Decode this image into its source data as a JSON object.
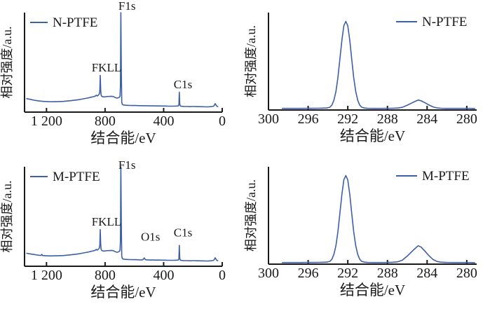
{
  "figure": {
    "description": "XPS spectra of N-PTFE and M-PTFE",
    "background": "#ffffff"
  },
  "colors": {
    "line": "#3e5fa5",
    "axis": "#1a1a1a",
    "text": "#1a1a1a"
  },
  "chart_data": [
    {
      "id": "n-ptfe-survey",
      "type": "line",
      "legend": {
        "label": "N-PTFE",
        "position": "top-left"
      },
      "xlabel": "结合能/eV",
      "ylabel": "相对强度/a.u.",
      "xlim": [
        1350,
        0
      ],
      "ylim": [
        0,
        1.0
      ],
      "x_reversed": true,
      "grid": false,
      "x_ticks": [
        {
          "value": 1200,
          "label": "1 200"
        },
        {
          "value": 800,
          "label": "800"
        },
        {
          "value": 400,
          "label": "400"
        },
        {
          "value": 0,
          "label": "0"
        }
      ],
      "annotations": [
        {
          "label": "F1s",
          "x": 650,
          "y": 1.07
        },
        {
          "label": "FKLL",
          "x": 790,
          "y": 0.45
        },
        {
          "label": "C1s",
          "x": 268,
          "y": 0.28
        }
      ],
      "points": [
        [
          1335,
          0.135
        ],
        [
          1310,
          0.128
        ],
        [
          1285,
          0.12
        ],
        [
          1260,
          0.114
        ],
        [
          1235,
          0.11
        ],
        [
          1210,
          0.107
        ],
        [
          1185,
          0.105
        ],
        [
          1160,
          0.104
        ],
        [
          1135,
          0.105
        ],
        [
          1110,
          0.106
        ],
        [
          1085,
          0.108
        ],
        [
          1060,
          0.111
        ],
        [
          1035,
          0.115
        ],
        [
          1010,
          0.119
        ],
        [
          985,
          0.124
        ],
        [
          960,
          0.13
        ],
        [
          935,
          0.137
        ],
        [
          912,
          0.144
        ],
        [
          895,
          0.15
        ],
        [
          880,
          0.155
        ],
        [
          868,
          0.16
        ],
        [
          860,
          0.17
        ],
        [
          854,
          0.162
        ],
        [
          848,
          0.168
        ],
        [
          843,
          0.176
        ],
        [
          839,
          0.183
        ],
        [
          836,
          0.215
        ],
        [
          833,
          0.37
        ],
        [
          830,
          0.23
        ],
        [
          827,
          0.172
        ],
        [
          822,
          0.158
        ],
        [
          815,
          0.154
        ],
        [
          805,
          0.153
        ],
        [
          795,
          0.155
        ],
        [
          783,
          0.157
        ],
        [
          770,
          0.158
        ],
        [
          757,
          0.159
        ],
        [
          745,
          0.157
        ],
        [
          735,
          0.15
        ],
        [
          726,
          0.144
        ],
        [
          718,
          0.141
        ],
        [
          710,
          0.144
        ],
        [
          703,
          0.149
        ],
        [
          698,
          0.16
        ],
        [
          695,
          0.26
        ],
        [
          692,
          1.0
        ],
        [
          689,
          0.4
        ],
        [
          686,
          0.1
        ],
        [
          682,
          0.078
        ],
        [
          675,
          0.072
        ],
        [
          665,
          0.07
        ],
        [
          650,
          0.068
        ],
        [
          630,
          0.067
        ],
        [
          610,
          0.066
        ],
        [
          590,
          0.066
        ],
        [
          570,
          0.065
        ],
        [
          550,
          0.065
        ],
        [
          530,
          0.064
        ],
        [
          510,
          0.064
        ],
        [
          490,
          0.063
        ],
        [
          470,
          0.063
        ],
        [
          450,
          0.062
        ],
        [
          430,
          0.062
        ],
        [
          410,
          0.061
        ],
        [
          390,
          0.061
        ],
        [
          370,
          0.06
        ],
        [
          350,
          0.06
        ],
        [
          330,
          0.06
        ],
        [
          310,
          0.061
        ],
        [
          300,
          0.063
        ],
        [
          296,
          0.075
        ],
        [
          293,
          0.2
        ],
        [
          290,
          0.085
        ],
        [
          287,
          0.063
        ],
        [
          280,
          0.059
        ],
        [
          265,
          0.057
        ],
        [
          250,
          0.056
        ],
        [
          235,
          0.056
        ],
        [
          220,
          0.055
        ],
        [
          205,
          0.056
        ],
        [
          190,
          0.056
        ],
        [
          175,
          0.055
        ],
        [
          160,
          0.055
        ],
        [
          145,
          0.054
        ],
        [
          130,
          0.054
        ],
        [
          115,
          0.053
        ],
        [
          100,
          0.053
        ],
        [
          85,
          0.054
        ],
        [
          70,
          0.056
        ],
        [
          58,
          0.06
        ],
        [
          48,
          0.085
        ],
        [
          42,
          0.07
        ],
        [
          36,
          0.058
        ],
        [
          30,
          0.056
        ]
      ]
    },
    {
      "id": "n-ptfe-c1s",
      "type": "line",
      "legend": {
        "label": "N-PTFE",
        "position": "top-right"
      },
      "xlabel": "结合能/eV",
      "ylabel": "相对强度/a.u.",
      "xlim": [
        300,
        279
      ],
      "ylim": [
        0,
        1.1
      ],
      "x_reversed": true,
      "grid": false,
      "x_ticks": [
        {
          "value": 300,
          "label": "300"
        },
        {
          "value": 296,
          "label": "296"
        },
        {
          "value": 292,
          "label": "292"
        },
        {
          "value": 288,
          "label": "288"
        },
        {
          "value": 284,
          "label": "284"
        },
        {
          "value": 280,
          "label": "280"
        }
      ],
      "annotations": [],
      "points": [
        [
          298.6,
          0.018
        ],
        [
          298.0,
          0.018
        ],
        [
          297.4,
          0.018
        ],
        [
          296.8,
          0.018
        ],
        [
          296.2,
          0.019
        ],
        [
          295.6,
          0.019
        ],
        [
          295.0,
          0.02
        ],
        [
          294.5,
          0.021
        ],
        [
          294.1,
          0.023
        ],
        [
          293.8,
          0.032
        ],
        [
          293.6,
          0.056
        ],
        [
          293.4,
          0.11
        ],
        [
          293.2,
          0.208
        ],
        [
          293.0,
          0.364
        ],
        [
          292.8,
          0.57
        ],
        [
          292.6,
          0.786
        ],
        [
          292.4,
          0.952
        ],
        [
          292.2,
          1.0
        ],
        [
          292.0,
          0.952
        ],
        [
          291.8,
          0.786
        ],
        [
          291.6,
          0.57
        ],
        [
          291.4,
          0.364
        ],
        [
          291.2,
          0.208
        ],
        [
          291.0,
          0.11
        ],
        [
          290.8,
          0.056
        ],
        [
          290.6,
          0.032
        ],
        [
          290.3,
          0.022
        ],
        [
          290.0,
          0.019
        ],
        [
          289.5,
          0.018
        ],
        [
          289.0,
          0.018
        ],
        [
          288.5,
          0.018
        ],
        [
          288.0,
          0.019
        ],
        [
          287.5,
          0.02
        ],
        [
          287.0,
          0.022
        ],
        [
          286.5,
          0.03
        ],
        [
          286.0,
          0.055
        ],
        [
          285.6,
          0.077
        ],
        [
          285.2,
          0.098
        ],
        [
          284.9,
          0.112
        ],
        [
          284.6,
          0.104
        ],
        [
          284.2,
          0.081
        ],
        [
          283.8,
          0.056
        ],
        [
          283.4,
          0.035
        ],
        [
          283.0,
          0.024
        ],
        [
          282.6,
          0.02
        ],
        [
          282.0,
          0.018
        ],
        [
          281.4,
          0.018
        ],
        [
          280.8,
          0.018
        ],
        [
          280.2,
          0.018
        ],
        [
          279.6,
          0.018
        ],
        [
          279.2,
          0.017
        ]
      ]
    },
    {
      "id": "m-ptfe-survey",
      "type": "line",
      "legend": {
        "label": "M-PTFE",
        "position": "top-left"
      },
      "xlabel": "结合能/eV",
      "ylabel": "相对强度/a.u.",
      "xlim": [
        1350,
        0
      ],
      "ylim": [
        0,
        1.0
      ],
      "x_reversed": true,
      "grid": false,
      "x_ticks": [
        {
          "value": 1200,
          "label": "1 200"
        },
        {
          "value": 800,
          "label": "800"
        },
        {
          "value": 400,
          "label": "400"
        },
        {
          "value": 0,
          "label": "0"
        }
      ],
      "annotations": [
        {
          "label": "F1s",
          "x": 650,
          "y": 1.02
        },
        {
          "label": "FKLL",
          "x": 790,
          "y": 0.45
        },
        {
          "label": "O1s",
          "x": 490,
          "y": 0.3
        },
        {
          "label": "C1s",
          "x": 268,
          "y": 0.34
        }
      ],
      "points": [
        [
          1335,
          0.13
        ],
        [
          1310,
          0.124
        ],
        [
          1285,
          0.118
        ],
        [
          1262,
          0.113
        ],
        [
          1245,
          0.11
        ],
        [
          1238,
          0.109
        ],
        [
          1232,
          0.12
        ],
        [
          1227,
          0.108
        ],
        [
          1210,
          0.106
        ],
        [
          1185,
          0.104
        ],
        [
          1160,
          0.104
        ],
        [
          1135,
          0.105
        ],
        [
          1110,
          0.106
        ],
        [
          1085,
          0.108
        ],
        [
          1060,
          0.111
        ],
        [
          1035,
          0.115
        ],
        [
          1010,
          0.119
        ],
        [
          985,
          0.124
        ],
        [
          960,
          0.13
        ],
        [
          935,
          0.137
        ],
        [
          912,
          0.144
        ],
        [
          895,
          0.15
        ],
        [
          880,
          0.155
        ],
        [
          868,
          0.16
        ],
        [
          860,
          0.17
        ],
        [
          854,
          0.162
        ],
        [
          848,
          0.168
        ],
        [
          843,
          0.176
        ],
        [
          839,
          0.183
        ],
        [
          836,
          0.215
        ],
        [
          833,
          0.37
        ],
        [
          830,
          0.23
        ],
        [
          827,
          0.172
        ],
        [
          822,
          0.158
        ],
        [
          815,
          0.154
        ],
        [
          805,
          0.153
        ],
        [
          795,
          0.155
        ],
        [
          783,
          0.157
        ],
        [
          770,
          0.158
        ],
        [
          757,
          0.159
        ],
        [
          745,
          0.157
        ],
        [
          735,
          0.15
        ],
        [
          726,
          0.144
        ],
        [
          718,
          0.141
        ],
        [
          710,
          0.144
        ],
        [
          703,
          0.149
        ],
        [
          698,
          0.16
        ],
        [
          695,
          0.26
        ],
        [
          692,
          1.0
        ],
        [
          689,
          0.4
        ],
        [
          686,
          0.1
        ],
        [
          682,
          0.078
        ],
        [
          675,
          0.072
        ],
        [
          665,
          0.07
        ],
        [
          650,
          0.068
        ],
        [
          630,
          0.067
        ],
        [
          610,
          0.066
        ],
        [
          590,
          0.066
        ],
        [
          570,
          0.065
        ],
        [
          552,
          0.064
        ],
        [
          545,
          0.065
        ],
        [
          538,
          0.072
        ],
        [
          532,
          0.084
        ],
        [
          527,
          0.071
        ],
        [
          521,
          0.065
        ],
        [
          510,
          0.064
        ],
        [
          490,
          0.063
        ],
        [
          470,
          0.063
        ],
        [
          450,
          0.062
        ],
        [
          430,
          0.062
        ],
        [
          410,
          0.061
        ],
        [
          390,
          0.061
        ],
        [
          370,
          0.06
        ],
        [
          350,
          0.06
        ],
        [
          330,
          0.06
        ],
        [
          310,
          0.061
        ],
        [
          300,
          0.063
        ],
        [
          296,
          0.075
        ],
        [
          293,
          0.21
        ],
        [
          290,
          0.085
        ],
        [
          287,
          0.063
        ],
        [
          280,
          0.059
        ],
        [
          265,
          0.057
        ],
        [
          250,
          0.056
        ],
        [
          235,
          0.056
        ],
        [
          220,
          0.055
        ],
        [
          205,
          0.056
        ],
        [
          190,
          0.056
        ],
        [
          175,
          0.055
        ],
        [
          160,
          0.055
        ],
        [
          145,
          0.054
        ],
        [
          130,
          0.054
        ],
        [
          115,
          0.053
        ],
        [
          100,
          0.053
        ],
        [
          85,
          0.054
        ],
        [
          70,
          0.056
        ],
        [
          58,
          0.06
        ],
        [
          48,
          0.085
        ],
        [
          42,
          0.07
        ],
        [
          36,
          0.058
        ],
        [
          30,
          0.056
        ]
      ]
    },
    {
      "id": "m-ptfe-c1s",
      "type": "line",
      "legend": {
        "label": "M-PTFE",
        "position": "top-right"
      },
      "xlabel": "结合能/eV",
      "ylabel": "相对强度/a.u.",
      "xlim": [
        300,
        279
      ],
      "ylim": [
        0,
        1.1
      ],
      "x_reversed": true,
      "grid": false,
      "x_ticks": [
        {
          "value": 300,
          "label": "300"
        },
        {
          "value": 296,
          "label": "296"
        },
        {
          "value": 292,
          "label": "292"
        },
        {
          "value": 288,
          "label": "288"
        },
        {
          "value": 284,
          "label": "284"
        },
        {
          "value": 280,
          "label": "280"
        }
      ],
      "annotations": [],
      "points": [
        [
          298.6,
          0.018
        ],
        [
          298.0,
          0.018
        ],
        [
          297.4,
          0.018
        ],
        [
          296.8,
          0.018
        ],
        [
          296.2,
          0.019
        ],
        [
          295.6,
          0.019
        ],
        [
          295.0,
          0.02
        ],
        [
          294.5,
          0.021
        ],
        [
          294.1,
          0.023
        ],
        [
          293.8,
          0.032
        ],
        [
          293.6,
          0.056
        ],
        [
          293.4,
          0.11
        ],
        [
          293.2,
          0.208
        ],
        [
          293.0,
          0.364
        ],
        [
          292.8,
          0.57
        ],
        [
          292.6,
          0.786
        ],
        [
          292.4,
          0.952
        ],
        [
          292.2,
          1.0
        ],
        [
          292.0,
          0.952
        ],
        [
          291.8,
          0.786
        ],
        [
          291.6,
          0.57
        ],
        [
          291.4,
          0.364
        ],
        [
          291.2,
          0.208
        ],
        [
          291.0,
          0.11
        ],
        [
          290.8,
          0.056
        ],
        [
          290.6,
          0.032
        ],
        [
          290.3,
          0.022
        ],
        [
          290.0,
          0.019
        ],
        [
          289.5,
          0.018
        ],
        [
          289.0,
          0.018
        ],
        [
          288.5,
          0.018
        ],
        [
          288.0,
          0.019
        ],
        [
          287.5,
          0.021
        ],
        [
          287.0,
          0.026
        ],
        [
          286.5,
          0.044
        ],
        [
          286.0,
          0.092
        ],
        [
          285.6,
          0.136
        ],
        [
          285.2,
          0.178
        ],
        [
          284.9,
          0.208
        ],
        [
          284.6,
          0.192
        ],
        [
          284.2,
          0.144
        ],
        [
          283.8,
          0.094
        ],
        [
          283.4,
          0.052
        ],
        [
          283.0,
          0.03
        ],
        [
          282.6,
          0.022
        ],
        [
          282.0,
          0.019
        ],
        [
          281.4,
          0.018
        ],
        [
          280.8,
          0.018
        ],
        [
          280.2,
          0.018
        ],
        [
          279.6,
          0.018
        ],
        [
          279.2,
          0.017
        ]
      ]
    }
  ]
}
